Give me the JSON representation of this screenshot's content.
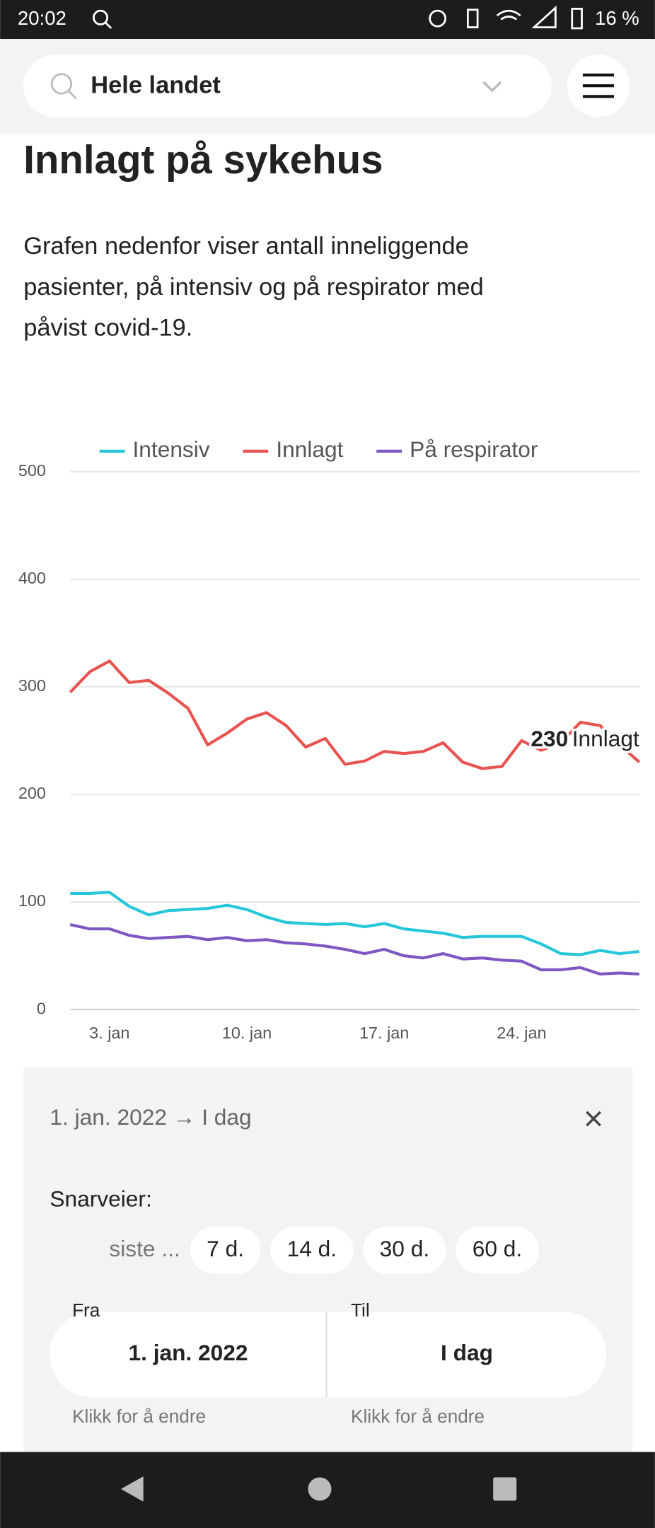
{
  "status_bar": {
    "time": "20:02",
    "battery": "16 %"
  },
  "header": {
    "search": "Hele landet"
  },
  "heading": "Innlagt på sykehus",
  "paragraph": [
    "Grafen nedenfor viser antall inneliggende",
    "pasienter, på intensiv og på respirator med",
    "påvist covid-19."
  ],
  "chart_data": {
    "type": "line",
    "categories": [
      null,
      null,
      "3. jan",
      null,
      null,
      null,
      null,
      null,
      null,
      "10. jan",
      null,
      null,
      null,
      null,
      null,
      null,
      "17. jan",
      null,
      null,
      null,
      null,
      null,
      null,
      "24. jan",
      null,
      null,
      null,
      null,
      null,
      null
    ],
    "series": [
      {
        "name": "Intensiv",
        "color": "#26c6da",
        "values": [
          108,
          108,
          109,
          96,
          88,
          92,
          93,
          94,
          97,
          93,
          86,
          81,
          80,
          79,
          80,
          77,
          80,
          75,
          73,
          71,
          67,
          68,
          68,
          68,
          61,
          52,
          51,
          55,
          52,
          54
        ]
      },
      {
        "name": "Innlagt",
        "color": "#e8524f",
        "values": [
          295,
          314,
          324,
          304,
          306,
          294,
          280,
          246,
          257,
          270,
          276,
          264,
          244,
          252,
          228,
          231,
          240,
          238,
          240,
          248,
          230,
          224,
          226,
          250,
          241,
          248,
          267,
          264,
          246,
          230
        ]
      },
      {
        "name": "På respirator",
        "color": "#7e57c2",
        "values": [
          79,
          75,
          75,
          69,
          66,
          67,
          68,
          65,
          67,
          64,
          65,
          62,
          61,
          59,
          56,
          52,
          56,
          50,
          48,
          52,
          47,
          48,
          46,
          45,
          37,
          37,
          39,
          33,
          34,
          33
        ]
      }
    ],
    "ylim": [
      0,
      500
    ],
    "yticks": [
      0,
      100,
      200,
      300,
      400,
      500
    ],
    "grid": true,
    "legend": "top"
  },
  "panel": {
    "range": "1. jan. 2022 → I dag",
    "shortcuts_label": "Snarveier:",
    "prefix": "siste ...",
    "shortcuts": [
      "7 d.",
      "14 d.",
      "30 d.",
      "60 d."
    ],
    "fields": [
      {
        "label": "Fra",
        "value": "1. jan. 2022",
        "hint": "Klikk for å endre"
      },
      {
        "label": "Til",
        "value": "I dag",
        "hint": "Klikk for å endre"
      }
    ]
  }
}
